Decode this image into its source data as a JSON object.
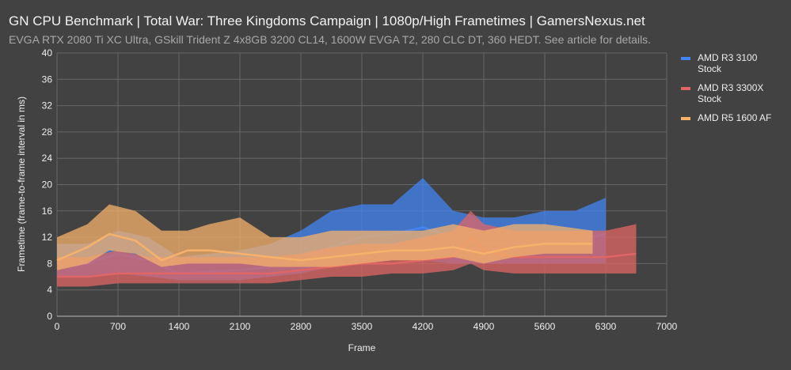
{
  "chart_data": {
    "type": "line",
    "title": "GN CPU Benchmark | Total War: Three Kingdoms Campaign | 1080p/High Frametimes | GamersNexus.net",
    "subtitle": "EVGA RTX 2080 Ti XC Ultra, GSkill Trident Z 4x8GB 3200 CL14, 1600W EVGA T2, 280 CLC DT, 360 HEDT. See article for details.",
    "xlabel": "Frame",
    "ylabel": "Frametime (frame-to-frame interval in ms)",
    "xlim": [
      0,
      7000
    ],
    "ylim": [
      0,
      40
    ],
    "xticks": [
      0,
      700,
      1400,
      2100,
      2800,
      3500,
      4200,
      4900,
      5600,
      6300,
      7000
    ],
    "yticks": [
      0,
      4,
      8,
      12,
      16,
      20,
      24,
      28,
      32,
      36,
      40
    ],
    "grid": true,
    "legend_position": "right",
    "series": [
      {
        "name": "AMD R3 3100 Stock",
        "color": "#4285f4",
        "x": [
          0,
          350,
          700,
          1050,
          1400,
          1750,
          2100,
          2450,
          2800,
          3150,
          3500,
          3850,
          4200,
          4550,
          4900,
          5250,
          5600,
          5950,
          6300
        ],
        "avg": [
          8,
          8,
          9.5,
          8.5,
          6.5,
          6.8,
          7,
          7.5,
          9,
          10.5,
          12,
          12.5,
          13.5,
          12,
          11,
          11,
          11,
          11.5,
          12.5
        ],
        "low": [
          6,
          6,
          6.5,
          6,
          5.5,
          5.5,
          5.5,
          6,
          6.5,
          7.5,
          8,
          8.5,
          8.5,
          8,
          8,
          8,
          8,
          8,
          8
        ],
        "high": [
          11,
          11,
          13,
          12,
          9,
          9.5,
          10,
          11,
          13,
          16,
          17,
          17,
          21,
          16,
          15,
          15,
          16,
          16,
          18
        ]
      },
      {
        "name": "AMD R3 3300X Stock",
        "color": "#e06666",
        "x": [
          0,
          350,
          700,
          1050,
          1400,
          1750,
          2100,
          2450,
          2800,
          3150,
          3500,
          3850,
          4200,
          4550,
          4750,
          4900,
          5250,
          5600,
          6300,
          6650
        ],
        "avg": [
          6,
          6,
          6.5,
          6.5,
          6.5,
          6.5,
          6.5,
          6.5,
          7,
          7.5,
          8,
          8,
          8.5,
          9,
          12,
          10,
          9,
          9,
          9,
          9.5
        ],
        "low": [
          4.5,
          4.5,
          5,
          5,
          5,
          5,
          5,
          5,
          5.5,
          6,
          6,
          6.5,
          6.5,
          7,
          8,
          7,
          6.5,
          6.5,
          6.5,
          6.5
        ],
        "high": [
          9,
          9,
          10,
          9,
          9,
          9,
          9,
          9,
          9.5,
          10.5,
          11,
          11,
          12,
          13,
          16,
          14,
          13,
          13,
          13,
          14
        ]
      },
      {
        "name": "AMD R5 1600 AF",
        "color": "#f6b26b",
        "x": [
          0,
          350,
          600,
          900,
          1200,
          1500,
          1750,
          2100,
          2450,
          2800,
          3150,
          3500,
          3850,
          4200,
          4550,
          4900,
          5250,
          5600,
          6150
        ],
        "avg": [
          8.5,
          10.5,
          12.5,
          11.5,
          8.5,
          10,
          10,
          9.5,
          9,
          8.5,
          9,
          9.5,
          10,
          10,
          10.5,
          9.5,
          10.5,
          11,
          11
        ],
        "low": [
          7,
          8,
          10,
          9.5,
          7.5,
          8,
          8,
          8,
          7.5,
          7.5,
          7.5,
          8,
          8.5,
          8.5,
          9,
          8,
          9,
          9.5,
          9.5
        ],
        "high": [
          12,
          14,
          17,
          16,
          13,
          13,
          14,
          15,
          12,
          12,
          13,
          13,
          13,
          13,
          14,
          13,
          14,
          14,
          13
        ]
      }
    ]
  },
  "legend": {
    "items": [
      {
        "line1": "AMD R3 3100",
        "line2": "Stock"
      },
      {
        "line1": "AMD R3 3300X",
        "line2": "Stock"
      },
      {
        "line1": "AMD R5 1600 AF",
        "line2": ""
      }
    ]
  }
}
